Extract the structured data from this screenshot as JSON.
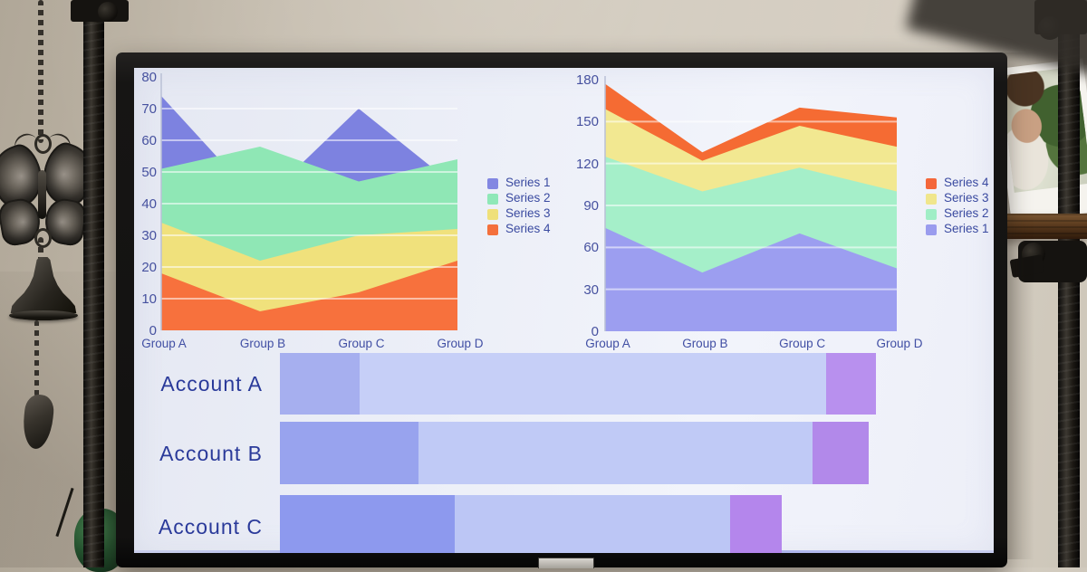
{
  "scene": {
    "wall_color": "#c9c0b2",
    "monitor_bezel_color": "#161514",
    "screen_background": "#edeff8",
    "objects": [
      "wind-chime-chain",
      "butterfly-ornament",
      "bell",
      "bell-clapper",
      "metal-pole-left",
      "metal-pole-right",
      "wooden-shelf",
      "photo-print",
      "monitor-stand"
    ]
  },
  "screen": {
    "text_color_ticks": "#46519f",
    "text_color_accounts": "#2a3a9a"
  },
  "chart_data": [
    {
      "type": "area",
      "variant": "overlay",
      "title": "",
      "categories": [
        "Group A",
        "Group B",
        "Group C",
        "Group D"
      ],
      "series": [
        {
          "name": "Series 1",
          "values": [
            74,
            40,
            70,
            45
          ],
          "color": "#7d82e0"
        },
        {
          "name": "Series 2",
          "values": [
            51,
            58,
            47,
            54
          ],
          "color": "#8fe7b5"
        },
        {
          "name": "Series 3",
          "values": [
            34,
            22,
            30,
            32
          ],
          "color": "#f0e17c"
        },
        {
          "name": "Series 4",
          "values": [
            18,
            6,
            12,
            22
          ],
          "color": "#f7713d"
        }
      ],
      "legend": [
        {
          "label": "Series 1",
          "color": "#8287e2"
        },
        {
          "label": "Series 2",
          "color": "#8fe8b8"
        },
        {
          "label": "Series 3",
          "color": "#efe07a"
        },
        {
          "label": "Series 4",
          "color": "#f4703c"
        }
      ],
      "ylim": [
        0,
        80
      ],
      "ytick_step": 10,
      "grid": true,
      "legend_position": "right"
    },
    {
      "type": "area",
      "variant": "stacked",
      "title": "",
      "categories": [
        "Group A",
        "Group B",
        "Group C",
        "Group D"
      ],
      "series": [
        {
          "name": "Series 1",
          "values": [
            74,
            42,
            70,
            45
          ],
          "color": "#9c9ef0"
        },
        {
          "name": "Series 2",
          "values": [
            51,
            58,
            47,
            55
          ],
          "color": "#a5efc9"
        },
        {
          "name": "Series 3",
          "values": [
            34,
            22,
            30,
            32
          ],
          "color": "#f2e891"
        },
        {
          "name": "Series 4",
          "values": [
            18,
            6,
            13,
            21
          ],
          "color": "#f56b33"
        }
      ],
      "legend": [
        {
          "label": "Series 4",
          "color": "#f4673a"
        },
        {
          "label": "Series 3",
          "color": "#f0e68c"
        },
        {
          "label": "Series 2",
          "color": "#a0eec6"
        },
        {
          "label": "Series 1",
          "color": "#9a9cee"
        }
      ],
      "ylim": [
        0,
        180
      ],
      "ytick_step": 30,
      "grid": true,
      "legend_position": "right"
    },
    {
      "type": "bar",
      "variant": "horizontal-stacked",
      "title": "",
      "categories": [
        "Account A",
        "Account B",
        "Account C"
      ],
      "series": [
        {
          "name": "segment-1",
          "values": [
            88,
            153,
            193
          ]
        },
        {
          "name": "segment-2",
          "values": [
            515,
            435,
            304
          ]
        },
        {
          "name": "segment-3",
          "values": [
            55,
            62,
            57
          ]
        }
      ],
      "colors_by_row": [
        [
          "#a6afef",
          "#c6cff7",
          "#b890ee"
        ],
        [
          "#98a3ee",
          "#c0caf6",
          "#b289ea"
        ],
        [
          "#8d99ee",
          "#bcc6f5",
          "#b486ec"
        ]
      ],
      "xlim": [
        0,
        681
      ],
      "units": "arbitrary (no axis labels visible)"
    }
  ]
}
